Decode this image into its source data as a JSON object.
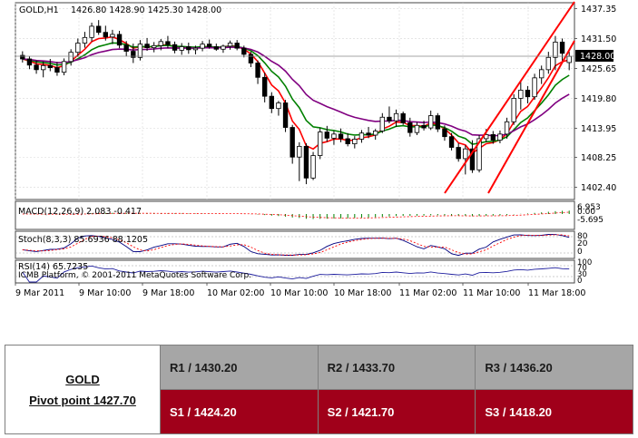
{
  "chart_data": {
    "type": "candlestick",
    "header": {
      "symbol": "GOLD,H1",
      "ohlc": "1426.80 1428.90 1425.30 1428.00"
    },
    "ylim": [
      1400.0,
      1438.5
    ],
    "y_ticks": [
      "1437.35",
      "1431.50",
      "1425.65",
      "1419.80",
      "1413.95",
      "1408.25",
      "1402.40"
    ],
    "last_price": "1428.00",
    "x_ticks": [
      "9 Mar 2011",
      "9 Mar 10:00",
      "9 Mar 18:00",
      "10 Mar 02:00",
      "10 Mar 10:00",
      "10 Mar 18:00",
      "11 Mar 02:00",
      "11 Mar 10:00",
      "11 Mar 18:00"
    ],
    "candles": [
      [
        1428.2,
        1429.0,
        1426.8,
        1427.5
      ],
      [
        1427.5,
        1428.0,
        1425.5,
        1426.3
      ],
      [
        1426.3,
        1427.2,
        1424.6,
        1425.4
      ],
      [
        1425.4,
        1427.0,
        1423.9,
        1426.2
      ],
      [
        1426.2,
        1427.5,
        1425.1,
        1425.8
      ],
      [
        1425.8,
        1426.9,
        1424.2,
        1424.9
      ],
      [
        1424.9,
        1427.6,
        1424.3,
        1427.0
      ],
      [
        1427.0,
        1429.4,
        1426.2,
        1428.8
      ],
      [
        1428.8,
        1431.5,
        1427.9,
        1430.6
      ],
      [
        1430.6,
        1432.8,
        1429.7,
        1431.7
      ],
      [
        1431.7,
        1434.6,
        1430.9,
        1433.9
      ],
      [
        1433.9,
        1435.1,
        1432.2,
        1432.7
      ],
      [
        1432.7,
        1434.0,
        1431.1,
        1431.8
      ],
      [
        1431.8,
        1433.2,
        1430.4,
        1432.3
      ],
      [
        1432.3,
        1433.0,
        1429.6,
        1430.2
      ],
      [
        1430.2,
        1431.0,
        1428.0,
        1429.0
      ],
      [
        1429.0,
        1430.5,
        1426.7,
        1427.8
      ],
      [
        1427.8,
        1431.2,
        1427.2,
        1430.4
      ],
      [
        1430.4,
        1431.6,
        1429.1,
        1429.7
      ],
      [
        1429.7,
        1430.8,
        1428.8,
        1430.1
      ],
      [
        1430.1,
        1431.4,
        1429.2,
        1430.9
      ],
      [
        1430.9,
        1432.0,
        1429.6,
        1430.3
      ],
      [
        1430.3,
        1430.9,
        1428.6,
        1429.2
      ],
      [
        1429.2,
        1430.6,
        1428.3,
        1429.9
      ],
      [
        1429.9,
        1430.7,
        1428.5,
        1429.3
      ],
      [
        1429.3,
        1430.1,
        1428.4,
        1429.6
      ],
      [
        1429.6,
        1431.0,
        1429.0,
        1430.4
      ],
      [
        1430.4,
        1431.3,
        1429.5,
        1429.9
      ],
      [
        1429.9,
        1430.5,
        1429.1,
        1429.4
      ],
      [
        1429.4,
        1430.3,
        1428.7,
        1430.0
      ],
      [
        1430.0,
        1431.1,
        1429.3,
        1430.6
      ],
      [
        1430.6,
        1431.2,
        1429.2,
        1429.6
      ],
      [
        1429.6,
        1430.1,
        1427.8,
        1428.4
      ],
      [
        1428.4,
        1428.9,
        1425.9,
        1426.7
      ],
      [
        1426.7,
        1427.2,
        1422.6,
        1423.9
      ],
      [
        1423.9,
        1424.8,
        1419.0,
        1420.2
      ],
      [
        1420.2,
        1421.0,
        1416.9,
        1417.8
      ],
      [
        1417.8,
        1419.3,
        1416.4,
        1418.9
      ],
      [
        1418.9,
        1419.5,
        1413.2,
        1414.1
      ],
      [
        1414.1,
        1414.6,
        1407.0,
        1408.3
      ],
      [
        1408.3,
        1411.2,
        1403.6,
        1410.4
      ],
      [
        1410.4,
        1411.0,
        1403.0,
        1404.2
      ],
      [
        1404.2,
        1409.3,
        1403.8,
        1408.6
      ],
      [
        1408.6,
        1414.0,
        1407.9,
        1413.2
      ],
      [
        1413.2,
        1414.4,
        1411.3,
        1412.0
      ],
      [
        1412.0,
        1413.4,
        1410.7,
        1412.8
      ],
      [
        1412.8,
        1413.9,
        1411.2,
        1411.9
      ],
      [
        1411.9,
        1413.0,
        1410.4,
        1410.9
      ],
      [
        1410.9,
        1412.4,
        1410.0,
        1411.8
      ],
      [
        1411.8,
        1413.6,
        1411.1,
        1413.0
      ],
      [
        1413.0,
        1414.2,
        1412.0,
        1412.6
      ],
      [
        1412.6,
        1413.8,
        1411.7,
        1413.4
      ],
      [
        1413.4,
        1416.9,
        1413.0,
        1416.1
      ],
      [
        1416.1,
        1418.2,
        1414.9,
        1415.4
      ],
      [
        1415.4,
        1417.6,
        1414.2,
        1416.8
      ],
      [
        1416.8,
        1417.2,
        1414.6,
        1415.0
      ],
      [
        1415.0,
        1416.0,
        1412.3,
        1413.1
      ],
      [
        1413.1,
        1415.1,
        1412.6,
        1414.5
      ],
      [
        1414.5,
        1415.4,
        1413.5,
        1414.0
      ],
      [
        1414.0,
        1417.4,
        1413.6,
        1416.4
      ],
      [
        1416.4,
        1416.9,
        1413.2,
        1413.8
      ],
      [
        1413.8,
        1414.5,
        1411.5,
        1412.3
      ],
      [
        1412.3,
        1413.0,
        1409.6,
        1410.2
      ],
      [
        1410.2,
        1411.0,
        1407.4,
        1408.0
      ],
      [
        1408.0,
        1410.6,
        1404.9,
        1409.9
      ],
      [
        1409.9,
        1411.6,
        1405.2,
        1405.8
      ],
      [
        1405.8,
        1412.6,
        1405.3,
        1411.9
      ],
      [
        1411.9,
        1413.8,
        1411.2,
        1412.7
      ],
      [
        1412.7,
        1413.4,
        1410.9,
        1411.6
      ],
      [
        1411.6,
        1413.5,
        1411.0,
        1412.8
      ],
      [
        1412.8,
        1416.0,
        1411.9,
        1415.2
      ],
      [
        1415.2,
        1420.6,
        1414.6,
        1419.8
      ],
      [
        1419.8,
        1423.0,
        1417.6,
        1421.4
      ],
      [
        1421.4,
        1422.2,
        1418.8,
        1420.1
      ],
      [
        1420.1,
        1424.6,
        1419.5,
        1423.8
      ],
      [
        1423.8,
        1426.2,
        1422.6,
        1425.4
      ],
      [
        1425.4,
        1428.9,
        1424.6,
        1427.8
      ],
      [
        1427.8,
        1432.0,
        1425.3,
        1430.8
      ],
      [
        1430.8,
        1431.5,
        1427.1,
        1428.6
      ],
      [
        1426.8,
        1428.9,
        1425.3,
        1428.0
      ]
    ],
    "indicators": {
      "macd": "MACD(12,26,9) 2.083 -0.417",
      "macd_ticks": [
        "6.953",
        "0.00",
        "-5.695"
      ],
      "stoch": "Stoch(8,3,3) 85.6936 88.1205",
      "stoch_ticks": [
        "80",
        "20",
        "0"
      ],
      "rsi": "RSI(14) 65.7235",
      "rsi_ticks": [
        "100",
        "70",
        "30",
        "0"
      ]
    },
    "watermark": "ICMB Platform, © 2001-2011 MetaQuotes Software Corp."
  },
  "pivot_table": {
    "symbol": "GOLD",
    "pivot": "Pivot point 1427.70",
    "r1": "R1 / 1430.20",
    "r2": "R2 / 1433.70",
    "r3": "R3 / 1436.20",
    "s1": "S1 / 1424.20",
    "s2": "S2 / 1421.70",
    "s3": "S3 / 1418.20"
  },
  "colors": {
    "bull_candle": "#ffffff",
    "bear_candle": "#000000",
    "ma_fast": "#ff0000",
    "ma_mid": "#008000",
    "ma_slow": "#800080",
    "channel": "#ff0000",
    "resistance_row": "#a6a6a6",
    "support_row": "#a0001a"
  }
}
